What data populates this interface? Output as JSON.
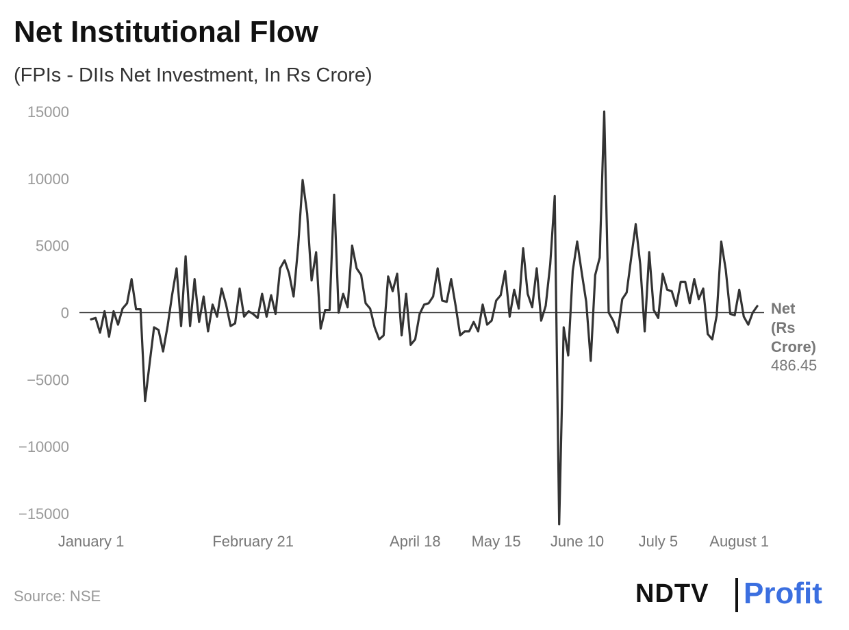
{
  "header": {
    "title": "Net Institutional Flow",
    "subtitle": "(FPIs - DIIs Net Investment, In Rs Crore)"
  },
  "footer": {
    "source": "Source: NSE",
    "logo_left": "NDTV",
    "logo_right": "Profit"
  },
  "colors": {
    "line": "#333333",
    "zero_line": "#333333",
    "tick_text": "#999999",
    "profit_blue": "#3b6fe0",
    "profit_pink": "#d94fb0",
    "ndtv_red_dot": "#e4202a"
  },
  "chart_data": {
    "type": "line",
    "title": "Net Institutional Flow",
    "subtitle": "(FPIs - DIIs Net Investment, In Rs Crore)",
    "xlabel": "",
    "ylabel": "",
    "ylim": [
      -15000,
      15000
    ],
    "yticks": [
      15000,
      10000,
      5000,
      0,
      -5000,
      -10000,
      -15000
    ],
    "ytick_labels": [
      "15000",
      "10000",
      "5000",
      "0",
      "−5000",
      "−10000",
      "−15000"
    ],
    "xtick_labels": [
      "January 1",
      "February 21",
      "April 18",
      "May 15",
      "June 10",
      "July 5",
      "August 1"
    ],
    "xtick_index": [
      0,
      36,
      72,
      90,
      108,
      126,
      144
    ],
    "grid": false,
    "legend": "none",
    "series": [
      {
        "name": "Net (Rs Crore)",
        "end_label": "Net (Rs Crore)",
        "end_value_label": "486.45",
        "values": [
          -500,
          -400,
          -1500,
          100,
          -1800,
          100,
          -900,
          300,
          700,
          2500,
          250,
          250,
          -6600,
          -3800,
          -1100,
          -1300,
          -2900,
          -1000,
          1300,
          3300,
          -1000,
          4200,
          -1000,
          2500,
          -700,
          1200,
          -1400,
          600,
          -300,
          1800,
          600,
          -1000,
          -800,
          1800,
          -300,
          100,
          -100,
          -400,
          1400,
          -300,
          1300,
          -100,
          3300,
          3900,
          2900,
          1200,
          4900,
          9900,
          7400,
          2400,
          4500,
          -1200,
          200,
          200,
          8800,
          0,
          1400,
          400,
          5000,
          3300,
          2800,
          700,
          300,
          -1100,
          -2000,
          -1700,
          2700,
          1600,
          2900,
          -1700,
          1400,
          -2400,
          -2000,
          -100,
          600,
          700,
          1200,
          3300,
          900,
          800,
          2500,
          500,
          -1700,
          -1400,
          -1400,
          -700,
          -1400,
          600,
          -900,
          -600,
          900,
          1300,
          3100,
          -300,
          1700,
          300,
          4800,
          1400,
          400,
          3300,
          -600,
          500,
          3600,
          8700,
          -15800,
          -1100,
          -3200,
          3100,
          5300,
          3000,
          800,
          -3600,
          2800,
          4100,
          15000,
          0,
          -600,
          -1500,
          1000,
          1500,
          4100,
          6600,
          3600,
          -1400,
          4500,
          200,
          -400,
          2900,
          1700,
          1600,
          500,
          2300,
          2300,
          700,
          2500,
          1000,
          1800,
          -1600,
          -2000,
          -200,
          5300,
          3200,
          -100,
          -200,
          1700,
          -300,
          -900,
          0,
          486.45
        ]
      }
    ]
  }
}
